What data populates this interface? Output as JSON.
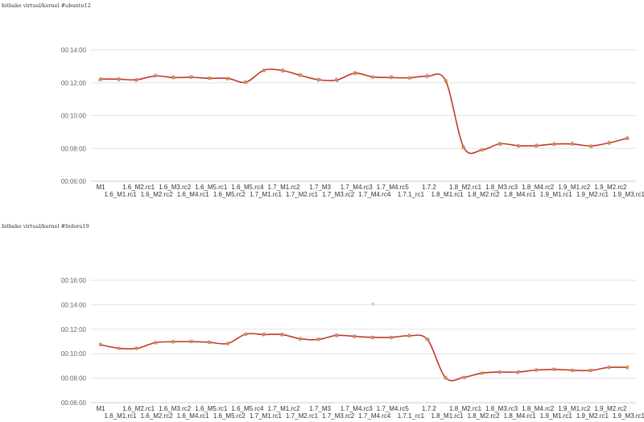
{
  "charts": [
    {
      "title": "bitbake virtual/kernel #ubuntu12"
    },
    {
      "title": "bitbake virtual/kernel #fedora19"
    }
  ],
  "colors": {
    "line": "#c0392b",
    "mean_point": "#d88a4a",
    "raw_point": "#bdbdbd",
    "grid": "#e2e2e2"
  },
  "chart_data": [
    {
      "type": "line",
      "title": "bitbake virtual/kernel #ubuntu12",
      "y_unit": "minutes",
      "y_ticks": [
        "00:06:00",
        "00:08:00",
        "00:10:00",
        "00:12:00",
        "00:14:00"
      ],
      "ylim": [
        360,
        840
      ],
      "grid": true,
      "categories": [
        "M1",
        "1.6_M1.rc1",
        "1.6_M2.rc1",
        "1.6_M2.rc2",
        "1.6_M3.rc2",
        "1.6_M4.rc1",
        "1.6_M5.rc1",
        "1.6_M5.rc2",
        "1.6_M5.rc4",
        "1.7_M1.rc1",
        "1.7_M1.rc2",
        "1.7_M2.rc1",
        "1.7_M3",
        "1.7_M3.rc2",
        "1.7_M4.rc3",
        "1.7_M4.rc4",
        "1.7_M4.rc5",
        "1.7.1_rc1",
        "1.7.2",
        "1.8_M1.rc1",
        "1.8_M2.rc1",
        "1.8_M2.rc2",
        "1.8_M3.rc3",
        "1.8_M4.rc1",
        "1.8_M4.rc2",
        "1.9_M1.rc1",
        "1.9_M1.rc2",
        "1.9_M2.rc1",
        "1.9_M2.rc2",
        "1.9_M3.rc1"
      ],
      "series": [
        {
          "values": [
            734,
            733,
            731,
            745,
            739,
            740,
            736,
            736,
            722,
            766,
            765,
            747,
            731,
            730,
            755,
            741,
            739,
            738,
            744,
            728,
            484,
            474,
            497,
            490,
            490,
            496,
            496,
            489,
            500,
            517
          ]
        }
      ]
    },
    {
      "type": "line",
      "title": "bitbake virtual/kernel #fedora19",
      "y_unit": "minutes",
      "y_ticks": [
        "00:06:00",
        "00:08:00",
        "00:10:00",
        "00:12:00",
        "00:14:00",
        "00:16:00"
      ],
      "ylim": [
        360,
        960
      ],
      "grid": true,
      "categories": [
        "M1",
        "1.6_M1.rc1",
        "1.6_M2.rc1",
        "1.6_M2.rc2",
        "1.6_M3.rc2",
        "1.6_M4.rc1",
        "1.6_M5.rc1",
        "1.6_M5.rc2",
        "1.6_M5.rc4",
        "1.7_M1.rc1",
        "1.7_M1.rc2",
        "1.7_M2.rc1",
        "1.7_M3",
        "1.7_M3.rc2",
        "1.7_M4.rc3",
        "1.7_M4.rc4",
        "1.7_M4.rc5",
        "1.7.1_rc1",
        "1.7.2",
        "1.8_M1.rc1",
        "1.8_M2.rc1",
        "1.8_M2.rc2",
        "1.8_M3.rc3",
        "1.8_M4.rc1",
        "1.8_M4.rc2",
        "1.9_M1.rc1",
        "1.9_M1.rc2",
        "1.9_M2.rc1",
        "1.9_M2.rc2",
        "1.9_M3.rc1"
      ],
      "series": [
        {
          "values": [
            644,
            627,
            626,
            654,
            659,
            659,
            656,
            650,
            696,
            694,
            694,
            673,
            670,
            690,
            685,
            680,
            680,
            688,
            670,
            482,
            484,
            505,
            510,
            510,
            520,
            523,
            519,
            518,
            533,
            533
          ]
        }
      ],
      "outliers": [
        {
          "category": "1.7_M4.rc4",
          "value": 844
        }
      ]
    }
  ]
}
